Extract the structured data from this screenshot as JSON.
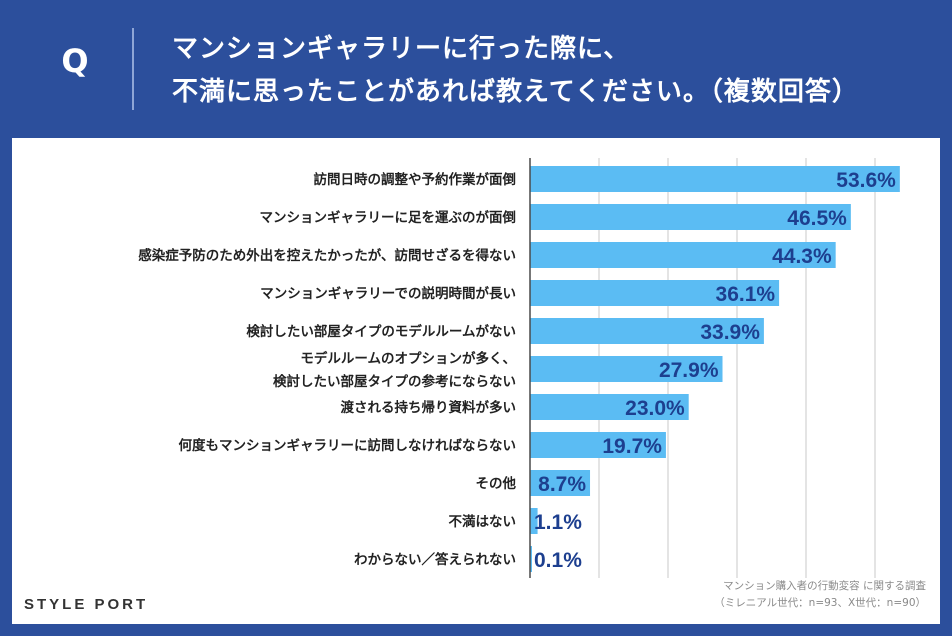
{
  "header": {
    "q_label": "Q",
    "question_line1": "マンションギャラリーに行った際に、",
    "question_line2": "不満に思ったことがあれば教えてください。（複数回答）"
  },
  "chart_data": {
    "type": "bar",
    "orientation": "horizontal",
    "unit": "%",
    "categories": [
      [
        "訪問日時の調整や予約作業が面倒"
      ],
      [
        "マンションギャラリーに足を運ぶのが面倒"
      ],
      [
        "感染症予防のため外出を控えたかったが、訪問せざるを得ない"
      ],
      [
        "マンションギャラリーでの説明時間が長い"
      ],
      [
        "検討したい部屋タイプのモデルルームがない"
      ],
      [
        "モデルルームのオプションが多く、",
        "検討したい部屋タイプの参考にならない"
      ],
      [
        "渡される持ち帰り資料が多い"
      ],
      [
        "何度もマンションギャラリーに訪問しなければならない"
      ],
      [
        "その他"
      ],
      [
        "不満はない"
      ],
      [
        "わからない／答えられない"
      ]
    ],
    "values": [
      53.6,
      46.5,
      44.3,
      36.1,
      33.9,
      27.9,
      23.0,
      19.7,
      8.7,
      1.1,
      0.1
    ],
    "value_labels": [
      "53.6%",
      "46.5%",
      "44.3%",
      "36.1%",
      "33.9%",
      "27.9%",
      "23.0%",
      "19.7%",
      "8.7%",
      "1.1%",
      "0.1%"
    ],
    "xlim": [
      0,
      70
    ],
    "grid_step": 10,
    "grid": true,
    "colors": {
      "bar": "#5bbcf3",
      "value_label": "#1d3f8f",
      "grid": "#c8c8c8",
      "axis": "#4a4a4a"
    }
  },
  "footer": {
    "logo": "STYLE PORT",
    "note_line1": "マンション購入者の行動変容 に関する調査",
    "note_line2": "（ミレニアル世代：n=93、X世代：n=90）"
  }
}
